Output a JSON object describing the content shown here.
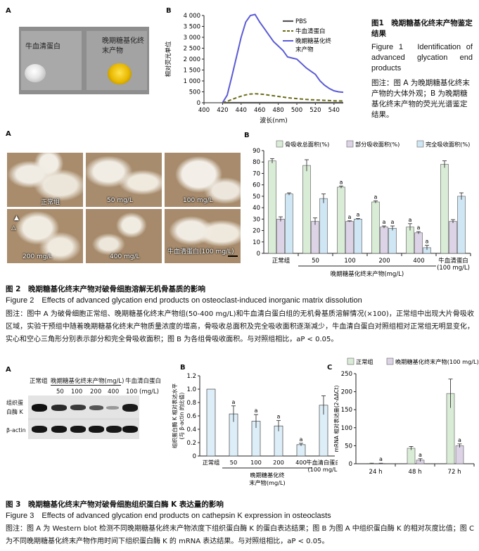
{
  "fig1": {
    "panelA": {
      "letter": "A",
      "left_label": "牛血清蛋白",
      "right_label": "晚期糖基化终末产物"
    },
    "panelB": {
      "letter": "B",
      "ylabel": "相对荧光单位",
      "xlabel": "波长(nm)",
      "legend": [
        "PBS",
        "牛血清蛋白",
        "晚期糖基化终末产物"
      ],
      "yticks": [
        "0",
        "500",
        "1 000",
        "1 500",
        "2 000",
        "2 500",
        "3 000",
        "3 500",
        "4 000"
      ],
      "xticks": [
        "400",
        "420",
        "440",
        "460",
        "480",
        "500",
        "520",
        "540"
      ]
    },
    "caption": {
      "zh_title": "图1　晚期糖基化终末产物鉴定结果",
      "en_title": "Figure 1　Identification of advanced glycation end products",
      "note": "图注：图 A 为晚期糖基化终末产物的大体外观；B 为晚期糖基化终末产物的荧光光谱鉴定结果。"
    }
  },
  "fig2": {
    "panelA": {
      "letter": "A",
      "labels": [
        "正常组",
        "50 mg/L",
        "100 mg/L",
        "200 mg/L",
        "400 mg/L",
        "牛血清蛋白(100 mg/L)"
      ],
      "triangle_marks": [
        "▲",
        "△"
      ]
    },
    "panelB": {
      "letter": "B",
      "legend": [
        "骨吸收总面积(%)",
        "部分吸收面积(%)",
        "完全吸收面积(%)"
      ],
      "yticks": [
        "0",
        "10",
        "20",
        "30",
        "40",
        "50",
        "60",
        "70",
        "80",
        "90"
      ],
      "categories": [
        "正常组",
        "50",
        "100",
        "200",
        "400",
        "牛血清蛋白\n(100 mg/L)"
      ],
      "group_label": "晚期糖基化终末产物(mg/L)",
      "sig_mark": "a"
    },
    "caption": {
      "zh_title": "图 2　晚期糖基化终末产物对破骨细胞溶解无机骨基质的影响",
      "en_title": "Figure 2　Effects of advanced glycation end products on osteoclast-induced inorganic matrix dissolution",
      "note": "图注：图中 A 为破骨细胞正常组、晚期糖基化终末产物组(50-400 mg/L)和牛血清白蛋白组的无机骨基质溶解情况(×100)，正常组中出现大片骨吸收区域，实验干预组中随着晚期糖基化终末产物质量浓度的增高，骨吸收总面积及完全吸收面积逐渐减少，牛血清白蛋白对照组相对正常组无明显变化，实心和空心三角形分别表示部分和完全骨吸收面积；图 B 为各组骨吸收面积。与对照组相比，aP < 0.05。"
    }
  },
  "fig3": {
    "panelA": {
      "letter": "A",
      "header_groups": [
        "正常组",
        "晚期糖基化终末产物(mg/L)",
        "牛血清白蛋白"
      ],
      "concentrations": [
        "50",
        "100",
        "200",
        "400",
        "100"
      ],
      "unit": "(mg/L)",
      "row_labels": [
        "组织蛋白酶 K",
        "β-actin"
      ]
    },
    "panelB": {
      "letter": "B",
      "ylabel": "组织蛋白酶 K 相对表达水平\n(与 β-actin 的比值)",
      "yticks": [
        "0",
        "0.2",
        "0.4",
        "0.6",
        "0.8",
        "1.0",
        "1.2"
      ],
      "categories": [
        "正常组",
        "50",
        "100",
        "200",
        "400",
        "牛血清白蛋白\n(100 mg/L)"
      ],
      "group_label": "晚期糖基化终\n末产物(mg/L)",
      "sig_mark": "a"
    },
    "panelC": {
      "letter": "C",
      "legend": [
        "正常组",
        "晚期糖基化终末产物(100 mg/L)"
      ],
      "ylabel": "mRNA 相对表达量(2-ΔΔCt)",
      "yticks": [
        "0",
        "50",
        "100",
        "150",
        "200",
        "250"
      ],
      "categories": [
        "24 h",
        "48 h",
        "72 h"
      ],
      "sig_mark": "a"
    },
    "caption": {
      "zh_title": "图 3　晚期糖基化终末产物对破骨细胞组织蛋白酶 K 表达量的影响",
      "en_title": "Figure 3　Effects of advanced glycation end products on cathepsin K expression in osteoclasts",
      "note": "图注：图 A 为 Western blot 检测不同晚期糖基化终末产物浓度下组织蛋白酶 K 的蛋白表达结果；图 B 为图 A 中组织蛋白酶 K 的相对灰度比值；图 C 为不同晚期糖基化终末产物作用时间下组织蛋白酶 K 的 mRNA 表达结果。与对照组相比，aP < 0.05。"
    }
  },
  "chart_data": [
    {
      "type": "line",
      "x": [
        420,
        425,
        430,
        435,
        440,
        445,
        450,
        455,
        460,
        465,
        470,
        475,
        480,
        485,
        490,
        495,
        500,
        505,
        510,
        515,
        520,
        525,
        530,
        535,
        540,
        545,
        550
      ],
      "series": [
        {
          "name": "PBS",
          "values": [
            0,
            0,
            0,
            0,
            0,
            0,
            0,
            0,
            0,
            0,
            0,
            0,
            0,
            0,
            0,
            0,
            0,
            0,
            0,
            0,
            0,
            0,
            0,
            0,
            0,
            0,
            0
          ],
          "color": "#555555"
        },
        {
          "name": "牛血清蛋白",
          "values": [
            0,
            60,
            150,
            230,
            300,
            360,
            400,
            410,
            400,
            380,
            350,
            320,
            290,
            260,
            230,
            210,
            190,
            170,
            150,
            140,
            130,
            120,
            110,
            100,
            90,
            85,
            80
          ],
          "color": "#6b6b1a"
        },
        {
          "name": "晚期糖基化终末产物",
          "values": [
            0,
            350,
            1200,
            2100,
            3000,
            3700,
            4000,
            4050,
            3700,
            3400,
            3100,
            2800,
            2600,
            2400,
            2100,
            2050,
            2000,
            1800,
            1600,
            1450,
            1300,
            1000,
            800,
            650,
            550,
            500,
            480
          ],
          "color": "#5b5bd6"
        }
      ],
      "xlabel": "波长(nm)",
      "ylabel": "相对荧光单位",
      "xlim": [
        400,
        550
      ],
      "ylim": [
        0,
        4000
      ]
    },
    {
      "type": "bar",
      "categories": [
        "正常组",
        "50",
        "100",
        "200",
        "400",
        "牛血清蛋白(100 mg/L)"
      ],
      "series": [
        {
          "name": "骨吸收总面积(%)",
          "values": [
            81,
            77,
            58,
            45,
            23,
            78
          ],
          "errors": [
            2,
            5,
            1,
            1,
            3,
            3
          ],
          "color": "#d9ecd6"
        },
        {
          "name": "部分吸收面积(%)",
          "values": [
            30,
            28,
            28,
            23,
            18,
            28
          ],
          "errors": [
            2,
            3,
            0.5,
            1,
            1,
            1.5
          ],
          "color": "#ddd3e6"
        },
        {
          "name": "完全吸收面积(%)",
          "values": [
            52,
            48,
            30,
            22,
            5,
            50
          ],
          "errors": [
            1,
            4,
            0.5,
            2,
            2,
            3
          ],
          "color": "#cfe6f4"
        }
      ],
      "ylim": [
        0,
        90
      ],
      "group_label": "晚期糖基化终末产物(mg/L)"
    },
    {
      "type": "bar",
      "categories": [
        "正常组",
        "50",
        "100",
        "200",
        "400",
        "牛血清白蛋白(100 mg/L)"
      ],
      "values": [
        1.0,
        0.63,
        0.52,
        0.45,
        0.17,
        0.76
      ],
      "errors": [
        0,
        0.12,
        0.1,
        0.08,
        0.02,
        0.14
      ],
      "ylabel": "组织蛋白酶 K 相对表达水平(与 β-actin 的比值)",
      "ylim": [
        0,
        1.2
      ]
    },
    {
      "type": "bar",
      "categories": [
        "24 h",
        "48 h",
        "72 h"
      ],
      "series": [
        {
          "name": "正常组",
          "values": [
            1,
            43,
            195
          ],
          "errors": [
            0.5,
            5,
            40
          ],
          "color": "#d9ecd6"
        },
        {
          "name": "晚期糖基化终末产物(100 mg/L)",
          "values": [
            1,
            10,
            50
          ],
          "errors": [
            0.5,
            4,
            5
          ],
          "color": "#ddd3e6"
        }
      ],
      "ylabel": "mRNA 相对表达量(2-ΔΔCt)",
      "ylim": [
        0,
        250
      ]
    }
  ]
}
